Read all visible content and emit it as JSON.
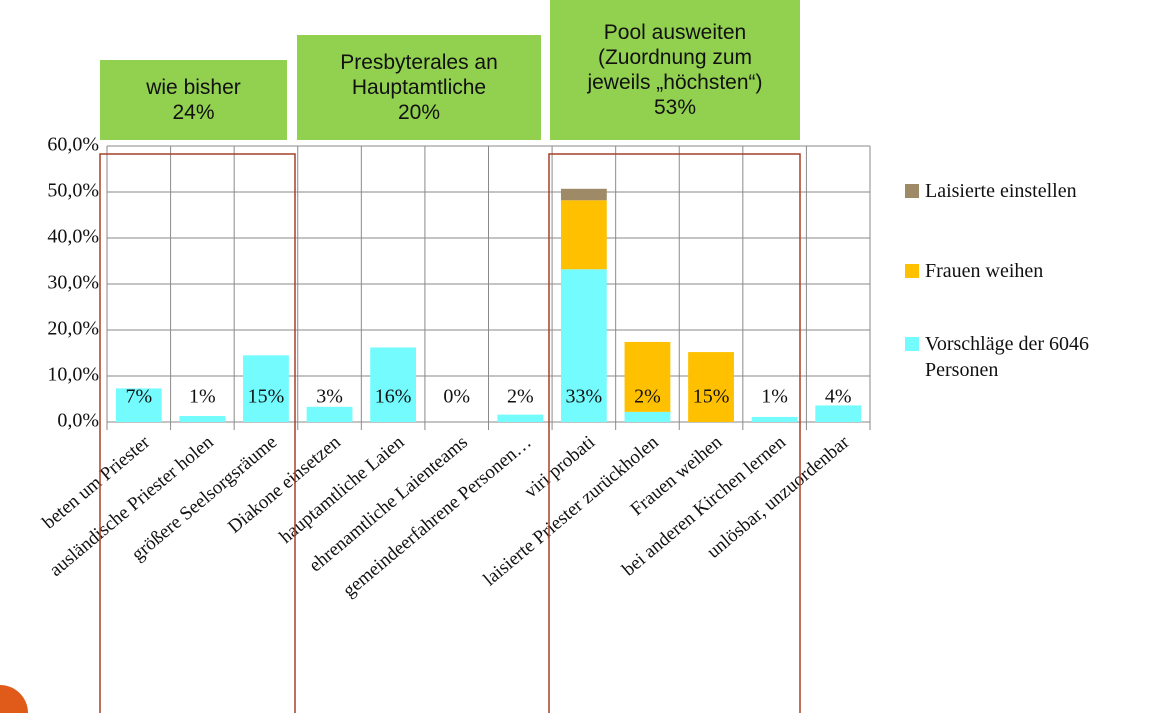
{
  "chart_data": {
    "type": "stacked_bar",
    "categories": [
      "beten um Priester",
      "ausländische Priester holen",
      "größere Seelsorgsräume",
      "Diakone einsetzen",
      "hauptamtliche Laien",
      "ehrenamtliche Laienteams",
      "gemeindeerfahrene Personen…",
      "viri probati",
      "laisierte Priester zurückholen",
      "Frauen weihen",
      "bei anderen Kirchen lernen",
      "unlösbar, unzuordenbar"
    ],
    "series": [
      {
        "name": "Vorschläge der 6046 Personen",
        "color": "#73fbfd",
        "values": [
          7.3,
          1.3,
          14.5,
          3.3,
          16.2,
          0,
          1.6,
          33.2,
          2.2,
          0,
          1.1,
          3.6
        ],
        "value_labels": [
          "7%",
          "1%",
          "15%",
          "3%",
          "16%",
          "0%",
          "2%",
          "33%",
          "2%",
          null,
          "1%",
          "4%"
        ]
      },
      {
        "name": "Frauen weihen",
        "color": "#ffc000",
        "values": [
          0,
          0,
          0,
          0,
          0,
          0,
          0,
          15,
          15.2,
          15.2,
          0,
          0
        ],
        "value_labels": [
          null,
          null,
          null,
          null,
          null,
          null,
          null,
          null,
          null,
          "15%",
          null,
          null
        ]
      },
      {
        "name": "Laisierte einstellen",
        "color": "#9e8a66",
        "values": [
          0,
          0,
          0,
          0,
          0,
          0,
          0,
          2.5,
          0,
          0,
          0,
          0
        ]
      }
    ],
    "ylim": [
      0,
      60
    ],
    "yticks": [
      {
        "value": 0,
        "label": "0,0%"
      },
      {
        "value": 10,
        "label": "10,0%"
      },
      {
        "value": 20,
        "label": "20,0%"
      },
      {
        "value": 30,
        "label": "30,0%"
      },
      {
        "value": 40,
        "label": "40,0%"
      },
      {
        "value": 50,
        "label": "50,0%"
      },
      {
        "value": 60,
        "label": "60,0%"
      }
    ],
    "grid": true,
    "legend": "right",
    "annotations": [
      {
        "lines": [
          "wie bisher",
          "24%"
        ]
      },
      {
        "lines": [
          "Presbyterales an",
          "Hauptamtliche",
          "20%"
        ]
      },
      {
        "lines": [
          "Pool ausweiten",
          "(Zuordnung zum",
          "jeweils „höchsten“)",
          "53%"
        ]
      }
    ]
  }
}
